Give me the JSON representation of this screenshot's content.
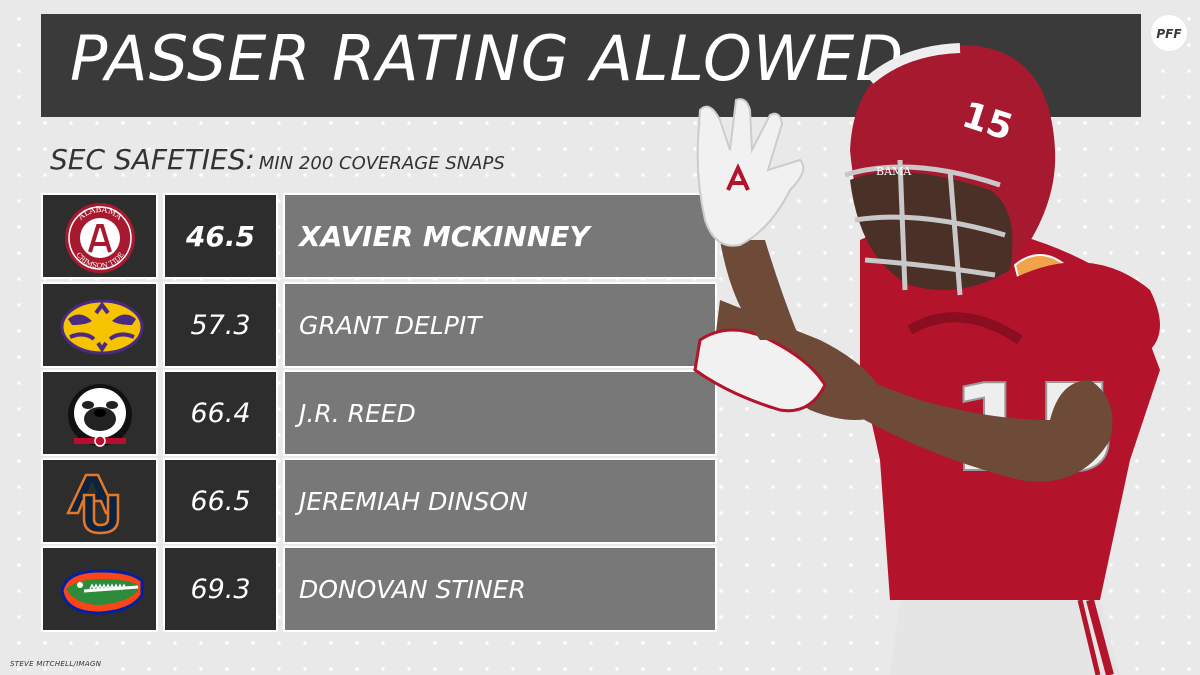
{
  "header": {
    "title": "PASSER RATING ALLOWED",
    "brand": "PFF"
  },
  "subtitle": {
    "main": "SEC SAFETIES:",
    "small": "MIN 200 COVERAGE SNAPS"
  },
  "chart_data": {
    "type": "table",
    "title": "PASSER RATING ALLOWED",
    "subtitle": "SEC SAFETIES: MIN 200 COVERAGE SNAPS",
    "rows": [
      {
        "team_logo": "alabama-logo",
        "value": "46.5",
        "player": "XAVIER MCKINNEY"
      },
      {
        "team_logo": "lsu-logo",
        "value": "57.3",
        "player": "GRANT DELPIT"
      },
      {
        "team_logo": "georgia-logo",
        "value": "66.4",
        "player": "J.R. REED"
      },
      {
        "team_logo": "auburn-logo",
        "value": "66.5",
        "player": "JEREMIAH DINSON"
      },
      {
        "team_logo": "florida-logo",
        "value": "69.3",
        "player": "DONOVAN STINER"
      }
    ]
  },
  "logos": {
    "alabama_ring_text_top": "ALABAMA",
    "alabama_ring_text_bottom": "CRIMSON TIDE"
  },
  "player_image": {
    "jersey_number": "15",
    "helmet_text": "BAMA"
  },
  "credit": "STEVE MITCHELL/IMAGN",
  "colors": {
    "title_bar": "#3a3a3a",
    "dark_cell": "#2d2d2d",
    "name_cell": "#787878",
    "background": "#e9e9e9",
    "crimson": "#a7192e"
  }
}
